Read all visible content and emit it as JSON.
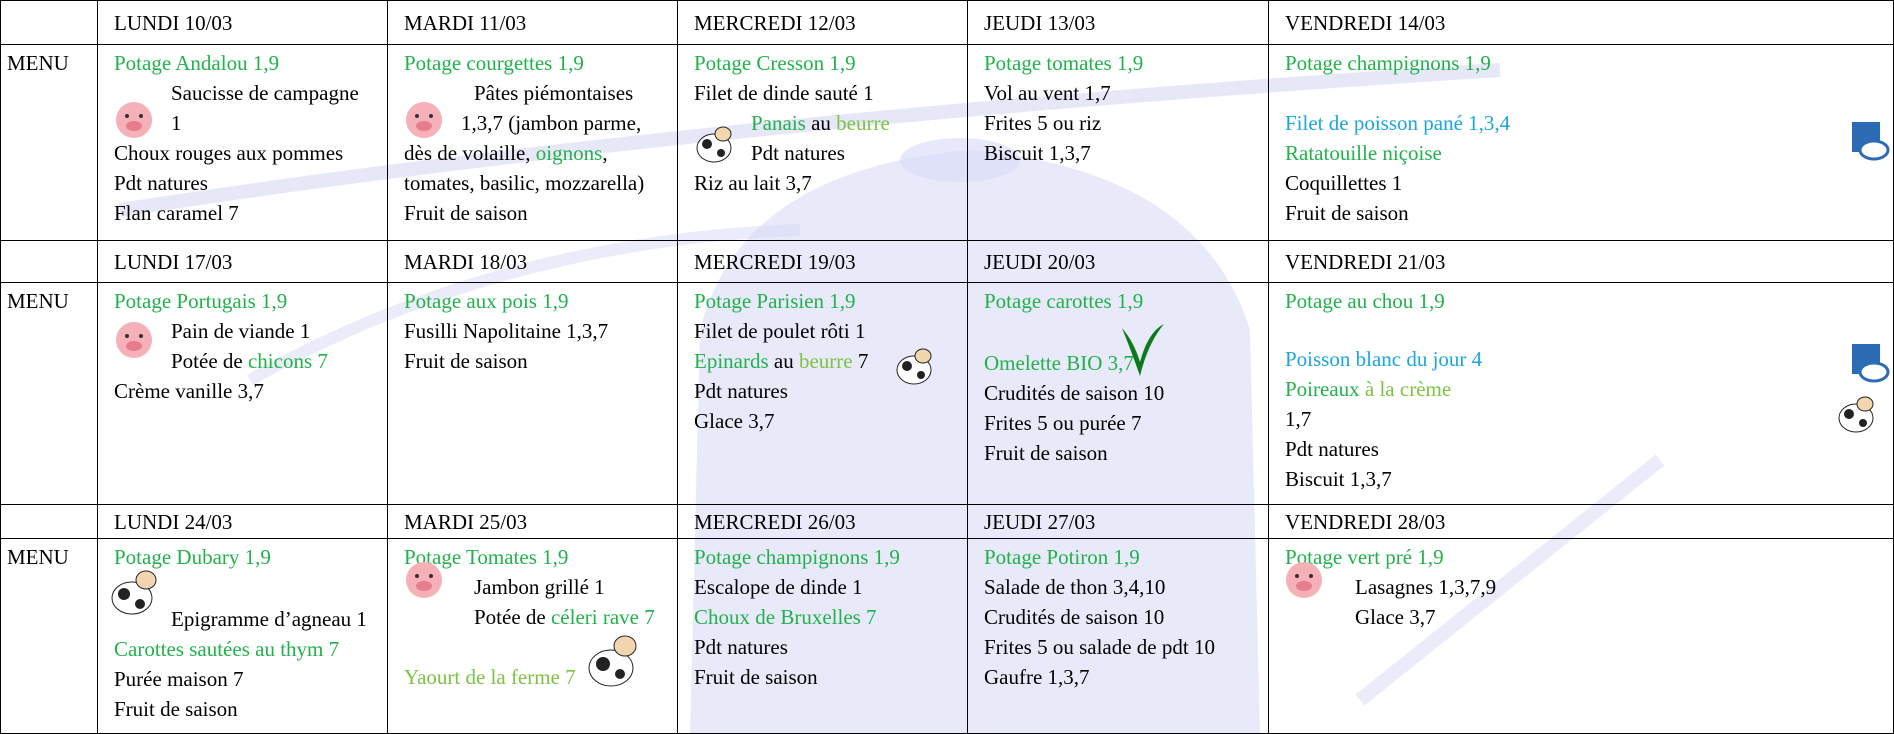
{
  "weeks": [
    {
      "days": [
        "LUNDI 10/03",
        "MARDI 11/03",
        "MERCREDI 12/03",
        "JEUDI 13/03",
        "VENDREDI 14/03"
      ],
      "row_label": "MENU",
      "menus": [
        [
          [
            {
              "text": "Potage Andalou 1,9",
              "color": "#22b14c"
            }
          ],
          [
            {
              "text": "Saucisse de campagne"
            }
          ],
          [
            {
              "text": "1"
            }
          ],
          [
            {
              "text": "Choux rouges aux pommes"
            }
          ],
          [
            {
              "text": "Pdt natures"
            }
          ],
          [
            {
              "text": "Flan caramel 7"
            }
          ]
        ],
        [
          [
            {
              "text": "Potage courgettes 1,9",
              "color": "#22b14c"
            }
          ],
          [
            {
              "text": "Pâtes piémontaises"
            }
          ],
          [
            {
              "text": "1,3,7 (jambon parme,"
            }
          ],
          [
            {
              "text": "dès de volaille, "
            },
            {
              "text": "oignons",
              "color": "#22b14c"
            },
            {
              "text": ","
            }
          ],
          [
            {
              "text": "tomates, basilic, mozzarella)"
            }
          ],
          [
            {
              "text": "Fruit de saison"
            }
          ]
        ],
        [
          [
            {
              "text": "Potage Cresson 1,9",
              "color": "#22b14c"
            }
          ],
          [
            {
              "text": "Filet de dinde sauté 1"
            }
          ],
          [
            {
              "text": "Panais",
              "color": "#22b14c"
            },
            {
              "text": " au "
            },
            {
              "text": "beurre",
              "color": "#7dc242"
            }
          ],
          [
            {
              "text": "Pdt natures"
            }
          ],
          [
            {
              "text": "Riz au lait 3,7"
            }
          ]
        ],
        [
          [
            {
              "text": "Potage tomates 1,9",
              "color": "#22b14c"
            }
          ],
          [
            {
              "text": "Vol au vent 1,7"
            }
          ],
          [
            {
              "text": "Frites 5 ou riz"
            }
          ],
          [
            {
              "text": "Biscuit 1,3,7"
            }
          ]
        ],
        [
          [
            {
              "text": "Potage champignons 1,9",
              "color": "#22b14c"
            }
          ],
          [
            {
              "text": "Filet de poisson pané 1,3,4",
              "color": "#1aa6df"
            }
          ],
          [
            {
              "text": "Ratatouille niçoise",
              "color": "#22b14c"
            }
          ],
          [
            {
              "text": "Coquillettes 1"
            }
          ],
          [
            {
              "text": "Fruit de saison"
            }
          ]
        ]
      ]
    },
    {
      "days": [
        "LUNDI 17/03",
        "MARDI 18/03",
        "MERCREDI 19/03",
        "JEUDI 20/03",
        "VENDREDI 21/03"
      ],
      "row_label": "MENU",
      "menus": [
        [
          [
            {
              "text": "Potage Portugais 1,9",
              "color": "#22b14c"
            }
          ],
          [
            {
              "text": "Pain de viande 1"
            }
          ],
          [
            {
              "text": "Potée de "
            },
            {
              "text": "chicons 7",
              "color": "#22b14c"
            }
          ],
          [
            {
              "text": "Crème vanille 3,7"
            }
          ]
        ],
        [
          [
            {
              "text": "Potage aux pois 1,9",
              "color": "#22b14c"
            }
          ],
          [
            {
              "text": "Fusilli Napolitaine 1,3,7"
            }
          ],
          [
            {
              "text": "Fruit de saison"
            }
          ]
        ],
        [
          [
            {
              "text": "Potage Parisien 1,9",
              "color": "#22b14c"
            }
          ],
          [
            {
              "text": "Filet de poulet rôti 1"
            }
          ],
          [
            {
              "text": "Epinards",
              "color": "#22b14c"
            },
            {
              "text": " au "
            },
            {
              "text": "beurre",
              "color": "#7dc242"
            },
            {
              "text": " 7"
            }
          ],
          [
            {
              "text": "Pdt natures"
            }
          ],
          [
            {
              "text": "Glace 3,7"
            }
          ]
        ],
        [
          [
            {
              "text": "Potage carottes 1,9",
              "color": "#22b14c"
            }
          ],
          [
            {
              "text": "Omelette BIO 3,7",
              "color": "#22b14c"
            }
          ],
          [
            {
              "text": "Crudités de saison 10"
            }
          ],
          [
            {
              "text": "Frites 5 ou purée 7"
            }
          ],
          [
            {
              "text": "Fruit de saison"
            }
          ]
        ],
        [
          [
            {
              "text": "Potage au chou 1,9",
              "color": "#22b14c"
            }
          ],
          [
            {
              "text": "Poisson blanc du jour 4",
              "color": "#1aa6df"
            }
          ],
          [
            {
              "text": "Poireaux ",
              "color": "#22b14c"
            },
            {
              "text": "à la crème",
              "color": "#7dc242"
            }
          ],
          [
            {
              "text": "1,7"
            }
          ],
          [
            {
              "text": "Pdt natures"
            }
          ],
          [
            {
              "text": "Biscuit 1,3,7"
            }
          ]
        ]
      ]
    },
    {
      "days": [
        "LUNDI 24/03",
        "MARDI 25/03",
        "MERCREDI 26/03",
        "JEUDI 27/03",
        "VENDREDI 28/03"
      ],
      "row_label": "MENU",
      "menus": [
        [
          [
            {
              "text": "Potage Dubary 1,9",
              "color": "#22b14c"
            }
          ],
          [
            {
              "text": "Epigramme d’agneau 1"
            }
          ],
          [
            {
              "text": "Carottes sautées au thym 7",
              "color": "#22b14c"
            }
          ],
          [
            {
              "text": "Purée maison 7"
            }
          ],
          [
            {
              "text": "Fruit de saison"
            }
          ]
        ],
        [
          [
            {
              "text": "Potage Tomates 1,9",
              "color": "#22b14c"
            }
          ],
          [
            {
              "text": "Jambon grillé 1"
            }
          ],
          [
            {
              "text": "Potée de "
            },
            {
              "text": "céleri rave 7",
              "color": "#22b14c"
            }
          ],
          [
            {
              "text": "Yaourt de la ferme 7",
              "color": "#7dc242"
            }
          ]
        ],
        [
          [
            {
              "text": "Potage champignons 1,9",
              "color": "#22b14c"
            }
          ],
          [
            {
              "text": "Escalope de dinde 1"
            }
          ],
          [
            {
              "text": "Choux de Bruxelles 7",
              "color": "#22b14c"
            }
          ],
          [
            {
              "text": "Pdt natures"
            }
          ],
          [
            {
              "text": "Fruit de saison"
            }
          ]
        ],
        [
          [
            {
              "text": "Potage Potiron 1,9",
              "color": "#22b14c"
            }
          ],
          [
            {
              "text": "Salade de thon 3,4,10"
            }
          ],
          [
            {
              "text": "Crudités de saison 10"
            }
          ],
          [
            {
              "text": "Frites 5 ou salade de pdt 10"
            }
          ],
          [
            {
              "text": "Gaufre 1,3,7"
            }
          ]
        ],
        [
          [
            {
              "text": "Potage vert pré 1,9",
              "color": "#22b14c"
            }
          ],
          [
            {
              "text": "Lasagnes 1,3,7,9"
            }
          ],
          [
            {
              "text": "Glace 3,7"
            }
          ]
        ]
      ]
    }
  ]
}
